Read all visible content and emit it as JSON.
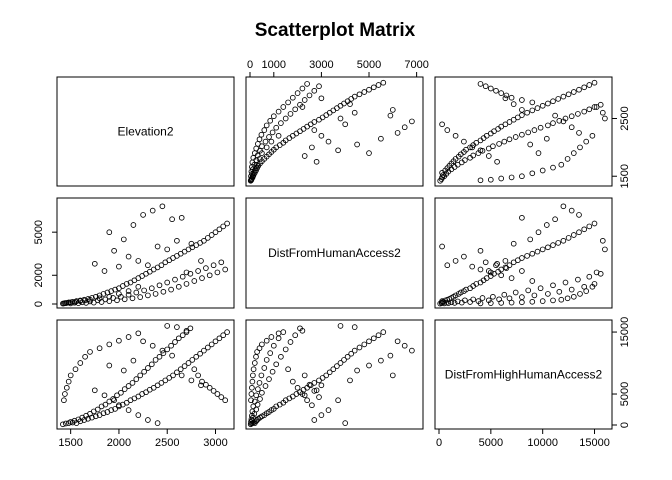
{
  "chart_data": {
    "type": "scatter",
    "title": "Scatterplot Matrix",
    "variables": [
      "Elevation2",
      "DistFromHumanAccess2",
      "DistFromHighHumanAccess2"
    ],
    "ranges": [
      [
        1400,
        3150
      ],
      [
        0,
        7100
      ],
      [
        0,
        16300
      ]
    ],
    "tick_labels": [
      {
        "variable": "Elevation2",
        "values": [
          1500,
          2000,
          2500,
          3000
        ],
        "labels": [
          "1500",
          "2000",
          "2500",
          "3000"
        ]
      },
      {
        "variable": "DistFromHumanAccess2",
        "values": [
          0,
          2000,
          5000
        ],
        "labels": [
          "0",
          "2000",
          "5000"
        ]
      },
      {
        "variable": "DistFromHighHumanAccess2",
        "values": [
          0,
          5000,
          15000
        ],
        "labels": [
          "0",
          "5000",
          "15000"
        ]
      },
      {
        "variable": "DistFromHumanAccess2",
        "values": [
          0,
          1000,
          3000,
          5000,
          7000
        ],
        "labels": [
          "0",
          "1000",
          "3000",
          "5000",
          "7000"
        ]
      },
      {
        "variable": "Elevation2",
        "values": [
          1500,
          2500
        ],
        "labels": [
          "1500",
          "2500"
        ]
      },
      {
        "variable": "DistFromHighHumanAccess2",
        "values": [
          0,
          5000,
          10000,
          15000
        ],
        "labels": [
          "0",
          "5000",
          "10000",
          "15000"
        ]
      }
    ],
    "axis_placement": [
      "bottom-col1",
      "left-row2",
      "right-row3",
      "top-col2",
      "right-row1",
      "bottom-col3"
    ],
    "points": [
      [
        1420,
        30,
        120
      ],
      [
        1450,
        60,
        250
      ],
      [
        1480,
        110,
        300
      ],
      [
        1500,
        40,
        500
      ],
      [
        1520,
        150,
        400
      ],
      [
        1540,
        90,
        700
      ],
      [
        1560,
        200,
        300
      ],
      [
        1580,
        60,
        900
      ],
      [
        1600,
        250,
        600
      ],
      [
        1620,
        120,
        1200
      ],
      [
        1640,
        300,
        800
      ],
      [
        1660,
        80,
        1500
      ],
      [
        1680,
        350,
        1000
      ],
      [
        1700,
        180,
        1800
      ],
      [
        1720,
        420,
        1200
      ],
      [
        1740,
        100,
        2200
      ],
      [
        1760,
        500,
        1400
      ],
      [
        1780,
        260,
        2500
      ],
      [
        1800,
        600,
        1600
      ],
      [
        1820,
        140,
        3000
      ],
      [
        1840,
        700,
        1900
      ],
      [
        1860,
        320,
        3300
      ],
      [
        1880,
        800,
        2100
      ],
      [
        1900,
        200,
        3800
      ],
      [
        1920,
        900,
        2400
      ],
      [
        1940,
        420,
        4200
      ],
      [
        1960,
        1000,
        2600
      ],
      [
        1980,
        260,
        4800
      ],
      [
        2000,
        1100,
        3000
      ],
      [
        2020,
        500,
        5200
      ],
      [
        2040,
        1250,
        3300
      ],
      [
        2060,
        330,
        5800
      ],
      [
        2080,
        1400,
        3600
      ],
      [
        2100,
        650,
        6300
      ],
      [
        2120,
        1500,
        4000
      ],
      [
        2140,
        400,
        6800
      ],
      [
        2160,
        1650,
        4300
      ],
      [
        2180,
        800,
        7400
      ],
      [
        2200,
        1800,
        4600
      ],
      [
        2220,
        480,
        8000
      ],
      [
        2240,
        1950,
        5000
      ],
      [
        2260,
        950,
        8600
      ],
      [
        2280,
        2100,
        5300
      ],
      [
        2300,
        600,
        9200
      ],
      [
        2320,
        2250,
        5700
      ],
      [
        2340,
        1100,
        9800
      ],
      [
        2360,
        2400,
        6000
      ],
      [
        2380,
        700,
        10500
      ],
      [
        2400,
        2550,
        6400
      ],
      [
        2420,
        1300,
        11000
      ],
      [
        2440,
        2700,
        6800
      ],
      [
        2460,
        850,
        11600
      ],
      [
        2480,
        2900,
        7200
      ],
      [
        2500,
        1500,
        12200
      ],
      [
        2520,
        3050,
        7600
      ],
      [
        2540,
        1000,
        12800
      ],
      [
        2560,
        3200,
        8000
      ],
      [
        2580,
        1700,
        13400
      ],
      [
        2600,
        3350,
        8500
      ],
      [
        2620,
        1200,
        14000
      ],
      [
        2640,
        3500,
        9000
      ],
      [
        2660,
        1900,
        14500
      ],
      [
        2680,
        3650,
        9500
      ],
      [
        2700,
        1400,
        15000
      ],
      [
        2720,
        3800,
        10000
      ],
      [
        2740,
        2100,
        15600
      ],
      [
        2760,
        3950,
        10500
      ],
      [
        2780,
        1600,
        9000
      ],
      [
        2800,
        4100,
        11000
      ],
      [
        2820,
        2300,
        8000
      ],
      [
        2840,
        4250,
        11500
      ],
      [
        2860,
        1800,
        7000
      ],
      [
        2880,
        4400,
        12000
      ],
      [
        2900,
        2500,
        6500
      ],
      [
        2920,
        4600,
        12500
      ],
      [
        2940,
        2000,
        6000
      ],
      [
        2960,
        4800,
        13000
      ],
      [
        2980,
        2700,
        5500
      ],
      [
        3000,
        5000,
        13500
      ],
      [
        3020,
        2200,
        5000
      ],
      [
        3040,
        5200,
        14000
      ],
      [
        3060,
        2900,
        4500
      ],
      [
        3080,
        5400,
        14500
      ],
      [
        3100,
        2400,
        4000
      ],
      [
        3120,
        5600,
        15000
      ],
      [
        2250,
        6200,
        13500
      ],
      [
        2350,
        6500,
        12800
      ],
      [
        2450,
        6800,
        12000
      ],
      [
        2550,
        5900,
        11200
      ],
      [
        2150,
        5500,
        10400
      ],
      [
        1900,
        5000,
        9600
      ],
      [
        2050,
        4500,
        8800
      ],
      [
        2650,
        6000,
        8000
      ],
      [
        2750,
        4200,
        7200
      ],
      [
        2850,
        3000,
        6400
      ],
      [
        1750,
        2800,
        5600
      ],
      [
        1850,
        2300,
        4800
      ],
      [
        1950,
        3700,
        4000
      ],
      [
        2000,
        2600,
        3200
      ],
      [
        2100,
        3300,
        2400
      ],
      [
        2200,
        3000,
        1600
      ],
      [
        2300,
        2700,
        800
      ],
      [
        2400,
        4000,
        300
      ],
      [
        2500,
        3800,
        16000
      ],
      [
        2600,
        4400,
        15800
      ],
      [
        2700,
        2200,
        15200
      ],
      [
        2200,
        1200,
        14800
      ],
      [
        2100,
        900,
        14200
      ],
      [
        2000,
        700,
        13600
      ],
      [
        1900,
        500,
        13000
      ],
      [
        1800,
        400,
        12400
      ],
      [
        1700,
        300,
        11800
      ],
      [
        1650,
        250,
        11000
      ],
      [
        1600,
        200,
        10000
      ],
      [
        1550,
        150,
        9000
      ],
      [
        1500,
        120,
        8000
      ],
      [
        1480,
        100,
        7000
      ],
      [
        1460,
        80,
        6000
      ],
      [
        1440,
        60,
        5000
      ],
      [
        1430,
        40,
        4000
      ]
    ]
  }
}
